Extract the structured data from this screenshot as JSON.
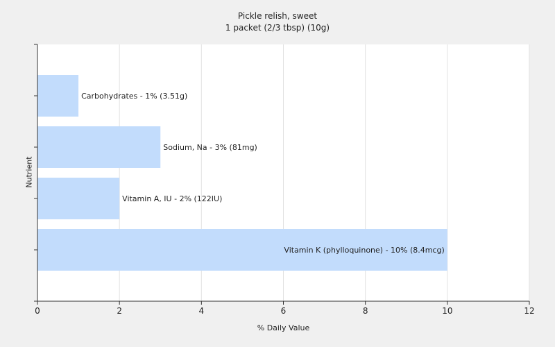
{
  "chart_data": {
    "type": "bar",
    "orientation": "horizontal",
    "title": "Pickle relish, sweet",
    "subtitle": "1 packet (2/3 tbsp) (10g)",
    "xlabel": "% Daily Value",
    "ylabel": "Nutrient",
    "xlim": [
      0,
      12
    ],
    "xticks": [
      0,
      2,
      4,
      6,
      8,
      10,
      12
    ],
    "grid": true,
    "bar_color": "#c2dcfc",
    "categories": [
      "Carbohydrates",
      "Sodium, Na",
      "Vitamin A, IU",
      "Vitamin K (phylloquinone)"
    ],
    "values": [
      1,
      3,
      2,
      10
    ],
    "labels": [
      "Carbohydrates - 1% (3.51g)",
      "Sodium, Na - 3% (81mg)",
      "Vitamin A, IU - 2% (122IU)",
      "Vitamin K (phylloquinone) - 10% (8.4mcg)"
    ]
  }
}
